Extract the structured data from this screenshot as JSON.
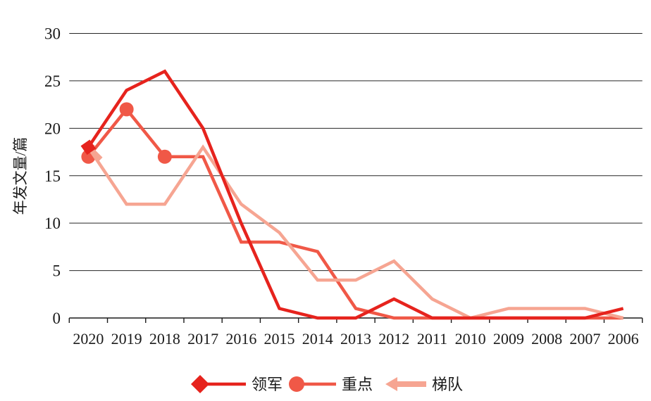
{
  "chart_data": {
    "type": "line",
    "title": "",
    "ylabel": "年发文量/篇",
    "xlabel": "",
    "ylim": [
      0,
      30
    ],
    "ytick_step": 5,
    "y_tick_labels": [
      "0",
      "5",
      "10",
      "15",
      "20",
      "25",
      "30"
    ],
    "categories": [
      "2020",
      "2019",
      "2018",
      "2017",
      "2016",
      "2015",
      "2014",
      "2013",
      "2012",
      "2011",
      "2010",
      "2009",
      "2008",
      "2007",
      "2006"
    ],
    "grid": "horizontal",
    "legend_position": "bottom",
    "series": [
      {
        "name": "领军",
        "color": "#e6231d",
        "marker": "diamond",
        "markers_at": [
          0
        ],
        "values": [
          18,
          24,
          26,
          20,
          10,
          1,
          0,
          0,
          2,
          0,
          0,
          0,
          0,
          0,
          1
        ]
      },
      {
        "name": "重点",
        "color": "#f05847",
        "marker": "circle",
        "markers_at": [
          0,
          1,
          2
        ],
        "values": [
          17,
          22,
          17,
          17,
          8,
          8,
          7,
          1,
          0,
          0,
          0,
          0,
          0,
          0,
          0
        ]
      },
      {
        "name": "梯队",
        "color": "#f6a592",
        "marker": "arrow-left",
        "markers_at": [
          0
        ],
        "values": [
          18,
          12,
          12,
          18,
          12,
          9,
          4,
          4,
          6,
          2,
          0,
          1,
          1,
          1,
          0
        ]
      }
    ]
  }
}
